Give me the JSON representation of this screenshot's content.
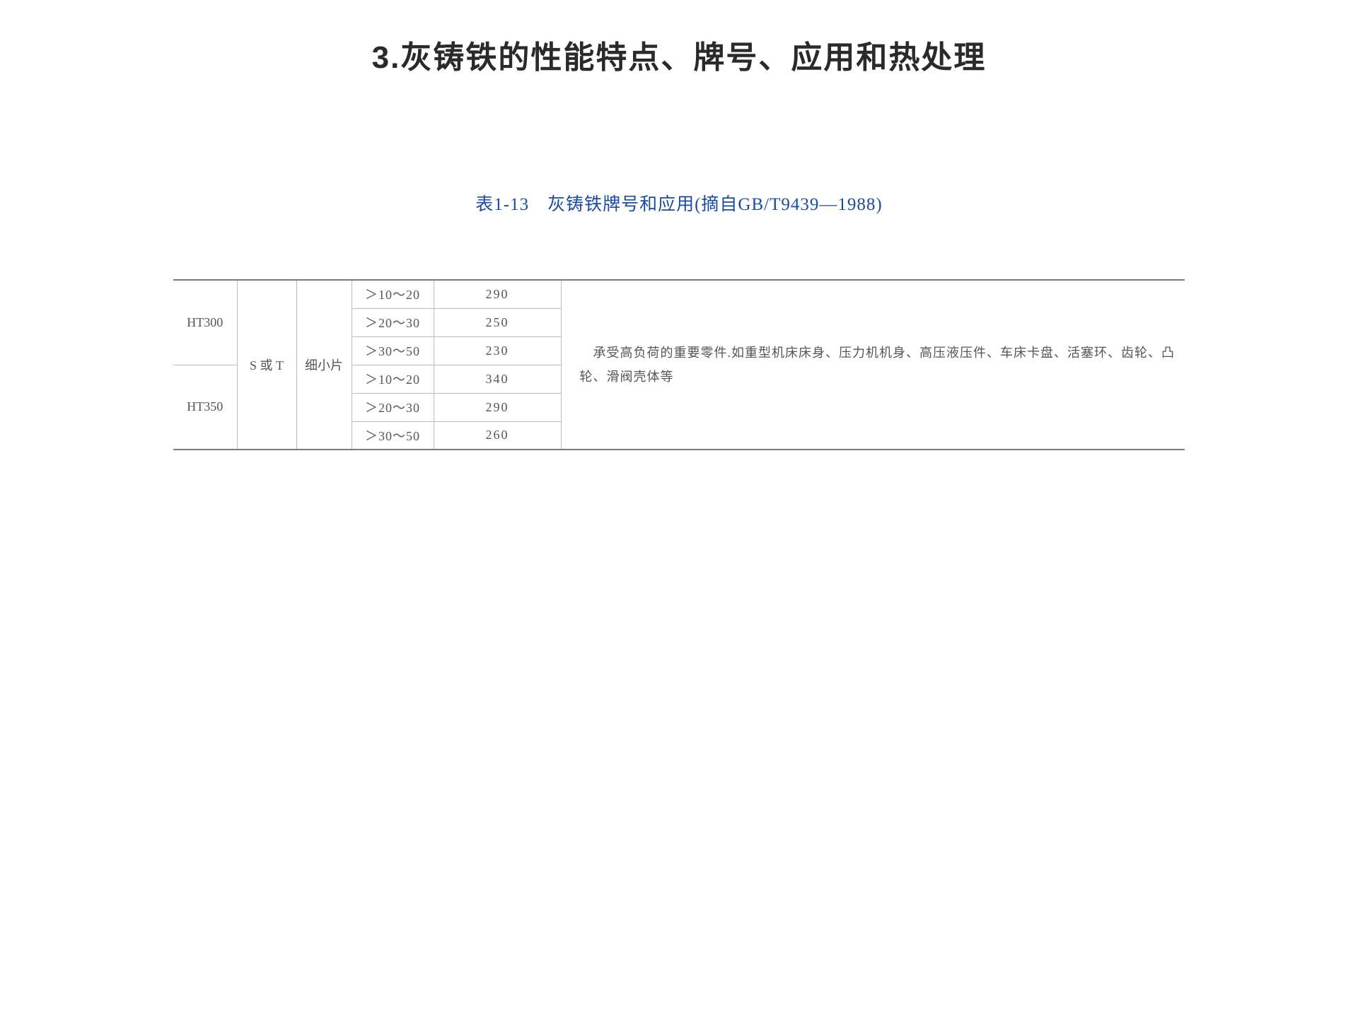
{
  "title": "3.灰铸铁的性能特点、牌号、应用和热处理",
  "caption": "表1-13　灰铸铁牌号和应用(摘自GB/T9439—1988)",
  "table": {
    "grades": [
      "HT300",
      "HT350"
    ],
    "structure": "S 或 T",
    "flake": "细小片",
    "rows": [
      {
        "range": "＞10～20",
        "value": "290"
      },
      {
        "range": "＞20～30",
        "value": "250"
      },
      {
        "range": "＞30～50",
        "value": "230"
      },
      {
        "range": "＞10～20",
        "value": "340"
      },
      {
        "range": "＞20～30",
        "value": "290"
      },
      {
        "range": "＞30～50",
        "value": "260"
      }
    ],
    "desc_indent": "　承受高负荷的重要零件.如重型机床床身、压力机机身、高压液压件、车床卡盘、活塞环、齿轮、凸轮、滑阀壳体等"
  },
  "colors": {
    "title": "#2a2a2a",
    "caption": "#194ba8",
    "cell_text": "#555555",
    "outer_border": "#7a7a7a",
    "inner_border": "#bdbdbd",
    "background": "#ffffff"
  },
  "typography": {
    "title_fontsize": 44,
    "caption_fontsize": 25,
    "cell_fontsize": 18
  }
}
